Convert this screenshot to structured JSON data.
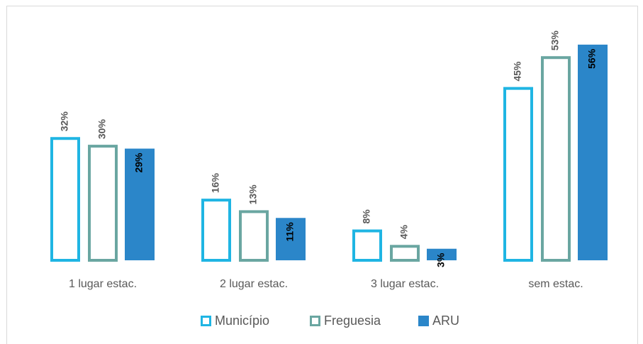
{
  "chart_data": {
    "type": "bar",
    "categories": [
      "1 lugar estac.",
      "2 lugar estac.",
      "3 lugar estac.",
      "sem estac."
    ],
    "series": [
      {
        "name": "Município",
        "color": "#1fb5e3",
        "style": "outline",
        "values": [
          32,
          16,
          8,
          45
        ],
        "value_labels": [
          "32%",
          "16%",
          "8%",
          "45%"
        ]
      },
      {
        "name": "Freguesia",
        "color": "#6aa6a1",
        "style": "outline",
        "values": [
          30,
          13,
          4,
          53
        ],
        "value_labels": [
          "30%",
          "13%",
          "4%",
          "53%"
        ]
      },
      {
        "name": "ARU",
        "color": "#2b86c9",
        "style": "filled",
        "values": [
          29,
          11,
          3,
          56
        ],
        "value_labels": [
          "29%",
          "11%",
          "3%",
          "56%"
        ]
      }
    ],
    "legend": "bottom"
  }
}
